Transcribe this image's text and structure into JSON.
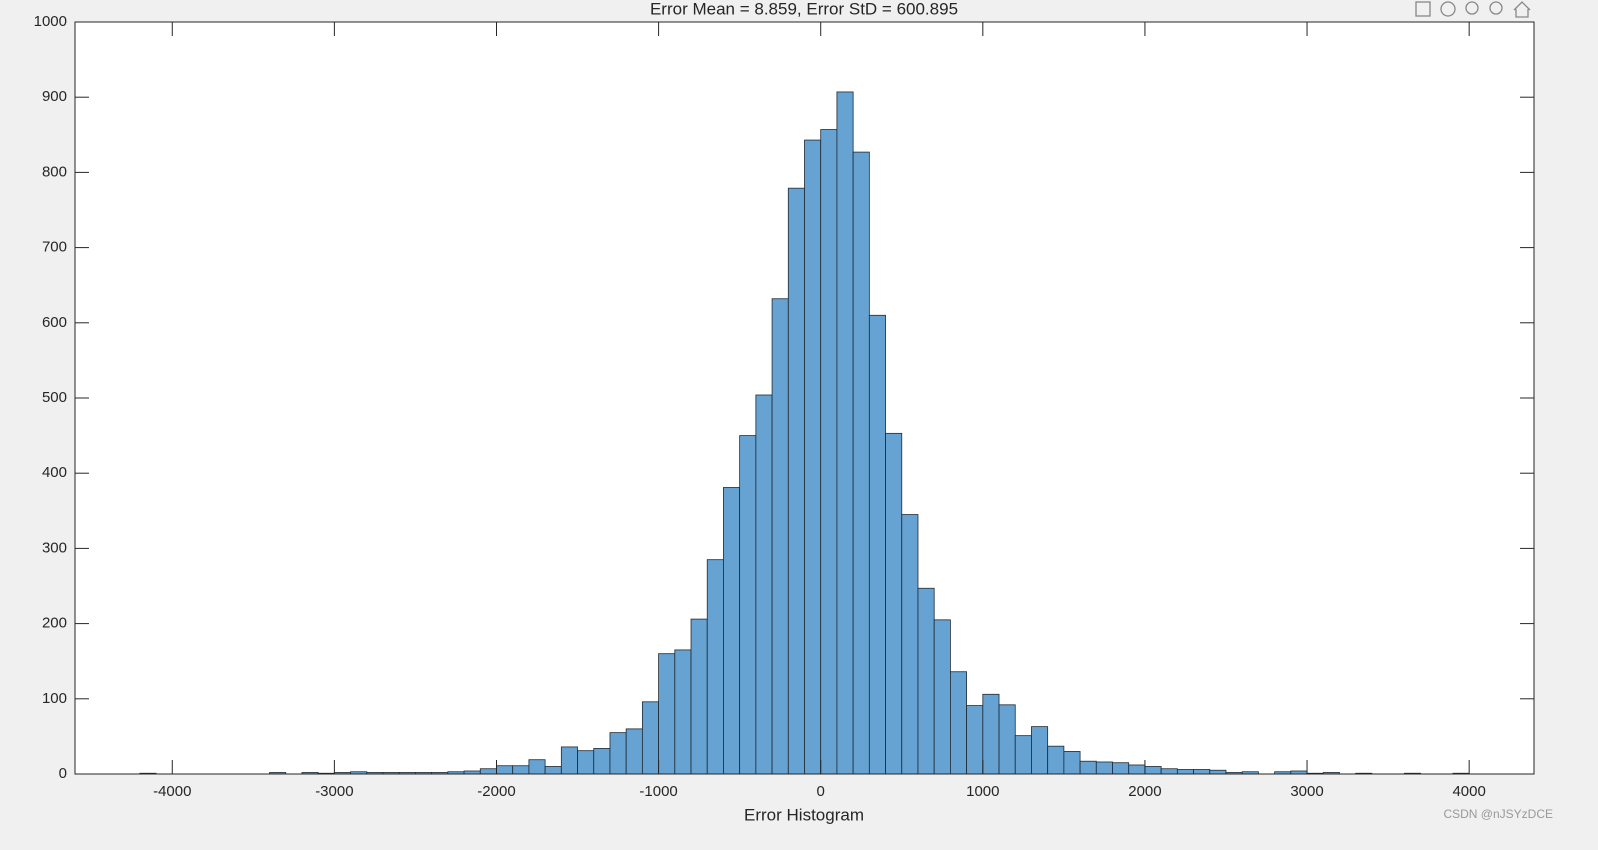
{
  "chart_data": {
    "type": "histogram",
    "title": "Error Mean = 8.859, Error StD = 600.895",
    "x_label": "Error Histogram",
    "watermark": "CSDN @nJSYzDCE",
    "bins": [
      -4200,
      -4100,
      -4000,
      -3900,
      -3800,
      -3700,
      -3600,
      -3500,
      -3400,
      -3300,
      -3200,
      -3100,
      -3000,
      -2900,
      -2800,
      -2700,
      -2600,
      -2500,
      -2400,
      -2300,
      -2200,
      -2100,
      -2000,
      -1900,
      -1800,
      -1700,
      -1600,
      -1500,
      -1400,
      -1300,
      -1200,
      -1100,
      -1000,
      -900,
      -800,
      -700,
      -600,
      -500,
      -400,
      -300,
      -200,
      -100,
      0,
      100,
      200,
      300,
      400,
      500,
      600,
      700,
      800,
      900,
      1000,
      1100,
      1200,
      1300,
      1400,
      1500,
      1600,
      1700,
      1800,
      1900,
      2000,
      2100,
      2200,
      2300,
      2400,
      2500,
      2600,
      2700,
      2800,
      2900,
      3000,
      3100,
      3200,
      3300,
      3400,
      3500,
      3600,
      3700,
      3800,
      3900,
      4000
    ],
    "values": [
      1,
      0,
      0,
      0,
      0,
      0,
      0,
      0,
      2,
      0,
      2,
      1,
      2,
      3,
      2,
      2,
      2,
      2,
      2,
      3,
      4,
      7,
      11,
      11,
      19,
      10,
      36,
      31,
      34,
      55,
      60,
      96,
      160,
      165,
      206,
      285,
      381,
      450,
      504,
      632,
      779,
      843,
      857,
      907,
      827,
      610,
      453,
      345,
      247,
      205,
      136,
      91,
      106,
      92,
      51,
      63,
      37,
      30,
      17,
      16,
      15,
      12,
      10,
      7,
      6,
      6,
      5,
      2,
      3,
      0,
      3,
      4,
      1,
      2,
      0,
      1,
      0,
      0,
      1,
      0,
      0,
      1
    ],
    "color": "#66a3d2",
    "edge_color": "#1f2a33",
    "xlim": [
      -4600,
      4400
    ],
    "xticks": [
      -4000,
      -3000,
      -2000,
      -1000,
      0,
      1000,
      2000,
      3000,
      4000
    ],
    "ylim": [
      0,
      1000
    ],
    "yticks": [
      0,
      100,
      200,
      300,
      400,
      500,
      600,
      700,
      800,
      900,
      1000
    ],
    "grid": false
  }
}
